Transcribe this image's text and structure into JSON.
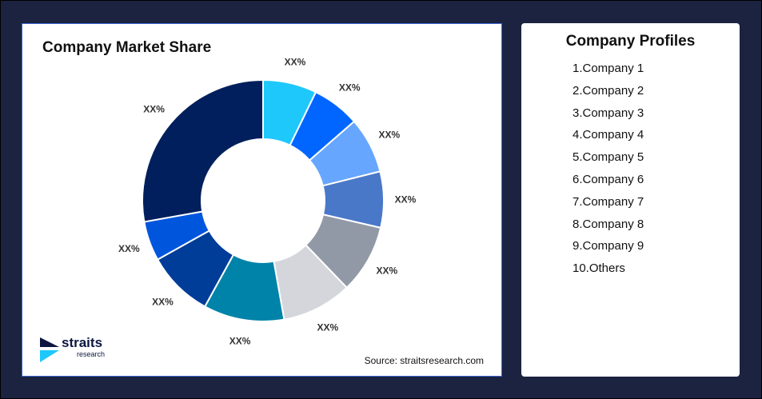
{
  "chart_data": {
    "type": "pie",
    "title": "Company Market Share",
    "donut": true,
    "slices": [
      {
        "label": "XX%",
        "value": 7.2,
        "color": "#1ec8fb"
      },
      {
        "label": "XX%",
        "value": 6.4,
        "color": "#0066ff"
      },
      {
        "label": "XX%",
        "value": 7.5,
        "color": "#66a6ff"
      },
      {
        "label": "XX%",
        "value": 7.5,
        "color": "#4a78c9"
      },
      {
        "label": "XX%",
        "value": 9.2,
        "color": "#9299a6"
      },
      {
        "label": "XX%",
        "value": 9.4,
        "color": "#d4d6dc"
      },
      {
        "label": "XX%",
        "value": 10.8,
        "color": "#0083a8"
      },
      {
        "label": "XX%",
        "value": 8.9,
        "color": "#003d99"
      },
      {
        "label": "XX%",
        "value": 5.3,
        "color": "#0055dd"
      },
      {
        "label": "XX%",
        "value": 27.8,
        "color": "#001f5c"
      }
    ]
  },
  "source": "Source: straitsresearch.com",
  "logo": {
    "name": "straits",
    "sub": "research"
  },
  "profiles": {
    "title": "Company Profiles",
    "items": [
      "1.Company 1",
      "2.Company 2",
      "3.Company 3",
      "4.Company 4",
      "5.Company 5",
      "6.Company 6",
      "7.Company 7",
      "8.Company 8",
      "9.Company 9",
      "10.Others"
    ]
  }
}
